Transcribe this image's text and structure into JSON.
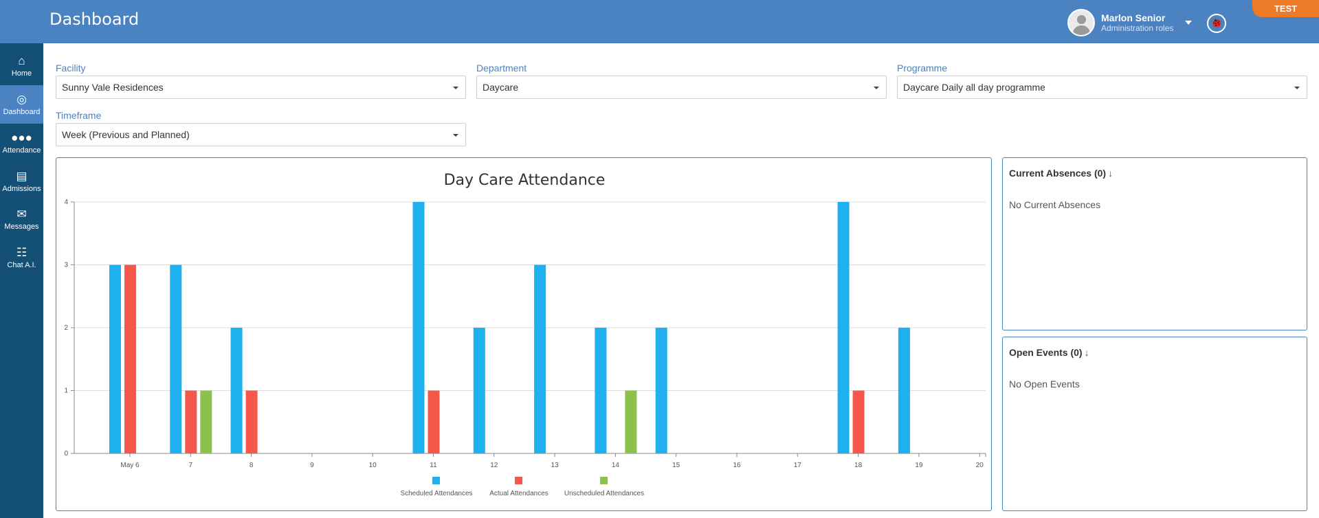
{
  "header": {
    "title": "Dashboard",
    "user_name": "Marlon Senior",
    "user_role": "Administration roles",
    "badge": "TEST"
  },
  "sidebar": {
    "items": [
      {
        "label": "Home",
        "icon": "home-icon"
      },
      {
        "label": "Dashboard",
        "icon": "globe-icon",
        "active": true
      },
      {
        "label": "Attendance",
        "icon": "users-icon"
      },
      {
        "label": "Admissions",
        "icon": "id-card-icon"
      },
      {
        "label": "Messages",
        "icon": "envelope-icon"
      },
      {
        "label": "Chat A.I.",
        "icon": "robot-icon"
      }
    ]
  },
  "filters": {
    "facility": {
      "label": "Facility",
      "value": "Sunny Vale Residences"
    },
    "department": {
      "label": "Department",
      "value": "Daycare"
    },
    "programme": {
      "label": "Programme",
      "value": "Daycare Daily all day programme"
    },
    "timeframe": {
      "label": "Timeframe",
      "value": "Week (Previous and Planned)"
    }
  },
  "panels": {
    "absences": {
      "title": "Current Absences (0)",
      "empty": "No Current Absences"
    },
    "events": {
      "title": "Open Events (0)",
      "empty": "No Open Events"
    }
  },
  "colors": {
    "header": "#4a82c2",
    "sidebar": "#144f75",
    "scheduled": "#1fb0f0",
    "actual": "#f5584a",
    "unscheduled": "#8cc14c",
    "badge": "#ec7a26"
  },
  "chart_data": {
    "type": "bar",
    "title": "Day Care Attendance",
    "categories": [
      "May 6",
      "7",
      "8",
      "9",
      "10",
      "11",
      "12",
      "13",
      "14",
      "15",
      "16",
      "17",
      "18",
      "19",
      "20"
    ],
    "series": [
      {
        "name": "Scheduled Attendances",
        "values": [
          3,
          3,
          2,
          0,
          0,
          4,
          2,
          3,
          2,
          2,
          0,
          0,
          4,
          2,
          0
        ]
      },
      {
        "name": "Actual Attendances",
        "values": [
          3,
          1,
          1,
          0,
          0,
          1,
          0,
          0,
          0,
          0,
          0,
          0,
          1,
          0,
          0
        ]
      },
      {
        "name": "Unscheduled Attendances",
        "values": [
          0,
          1,
          0,
          0,
          0,
          0,
          0,
          0,
          1,
          0,
          0,
          0,
          0,
          0,
          0
        ]
      }
    ],
    "yticks": [
      0,
      1,
      2,
      3,
      4
    ],
    "ylim": [
      0,
      4
    ],
    "grid": true,
    "legend": "bottom"
  }
}
